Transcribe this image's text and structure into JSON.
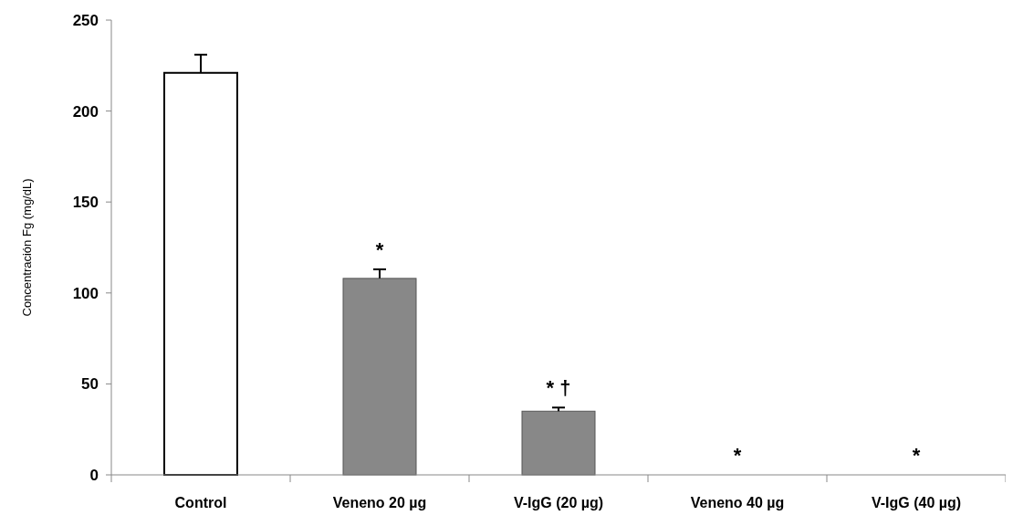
{
  "chart_data": {
    "type": "bar",
    "ylabel": "Concentración Fg (mg/dL)",
    "categories": [
      "Control",
      "Veneno 20 µg",
      "V-IgG (20 µg)",
      "Veneno 40 µg",
      "V-IgG (40 µg)"
    ],
    "values": [
      221,
      108,
      35,
      0,
      0
    ],
    "colors": [
      "#ffffff",
      "#888888",
      "#888888",
      "#888888",
      "#888888"
    ],
    "errors": [
      [
        221,
        231
      ],
      [
        108,
        113
      ],
      [
        35,
        37
      ],
      null,
      null
    ],
    "ylim": [
      0,
      250
    ],
    "yticks": [
      0,
      50,
      100,
      150,
      200,
      250
    ],
    "grid": false,
    "annotations": [
      "*",
      "* †",
      "*",
      "*"
    ]
  }
}
